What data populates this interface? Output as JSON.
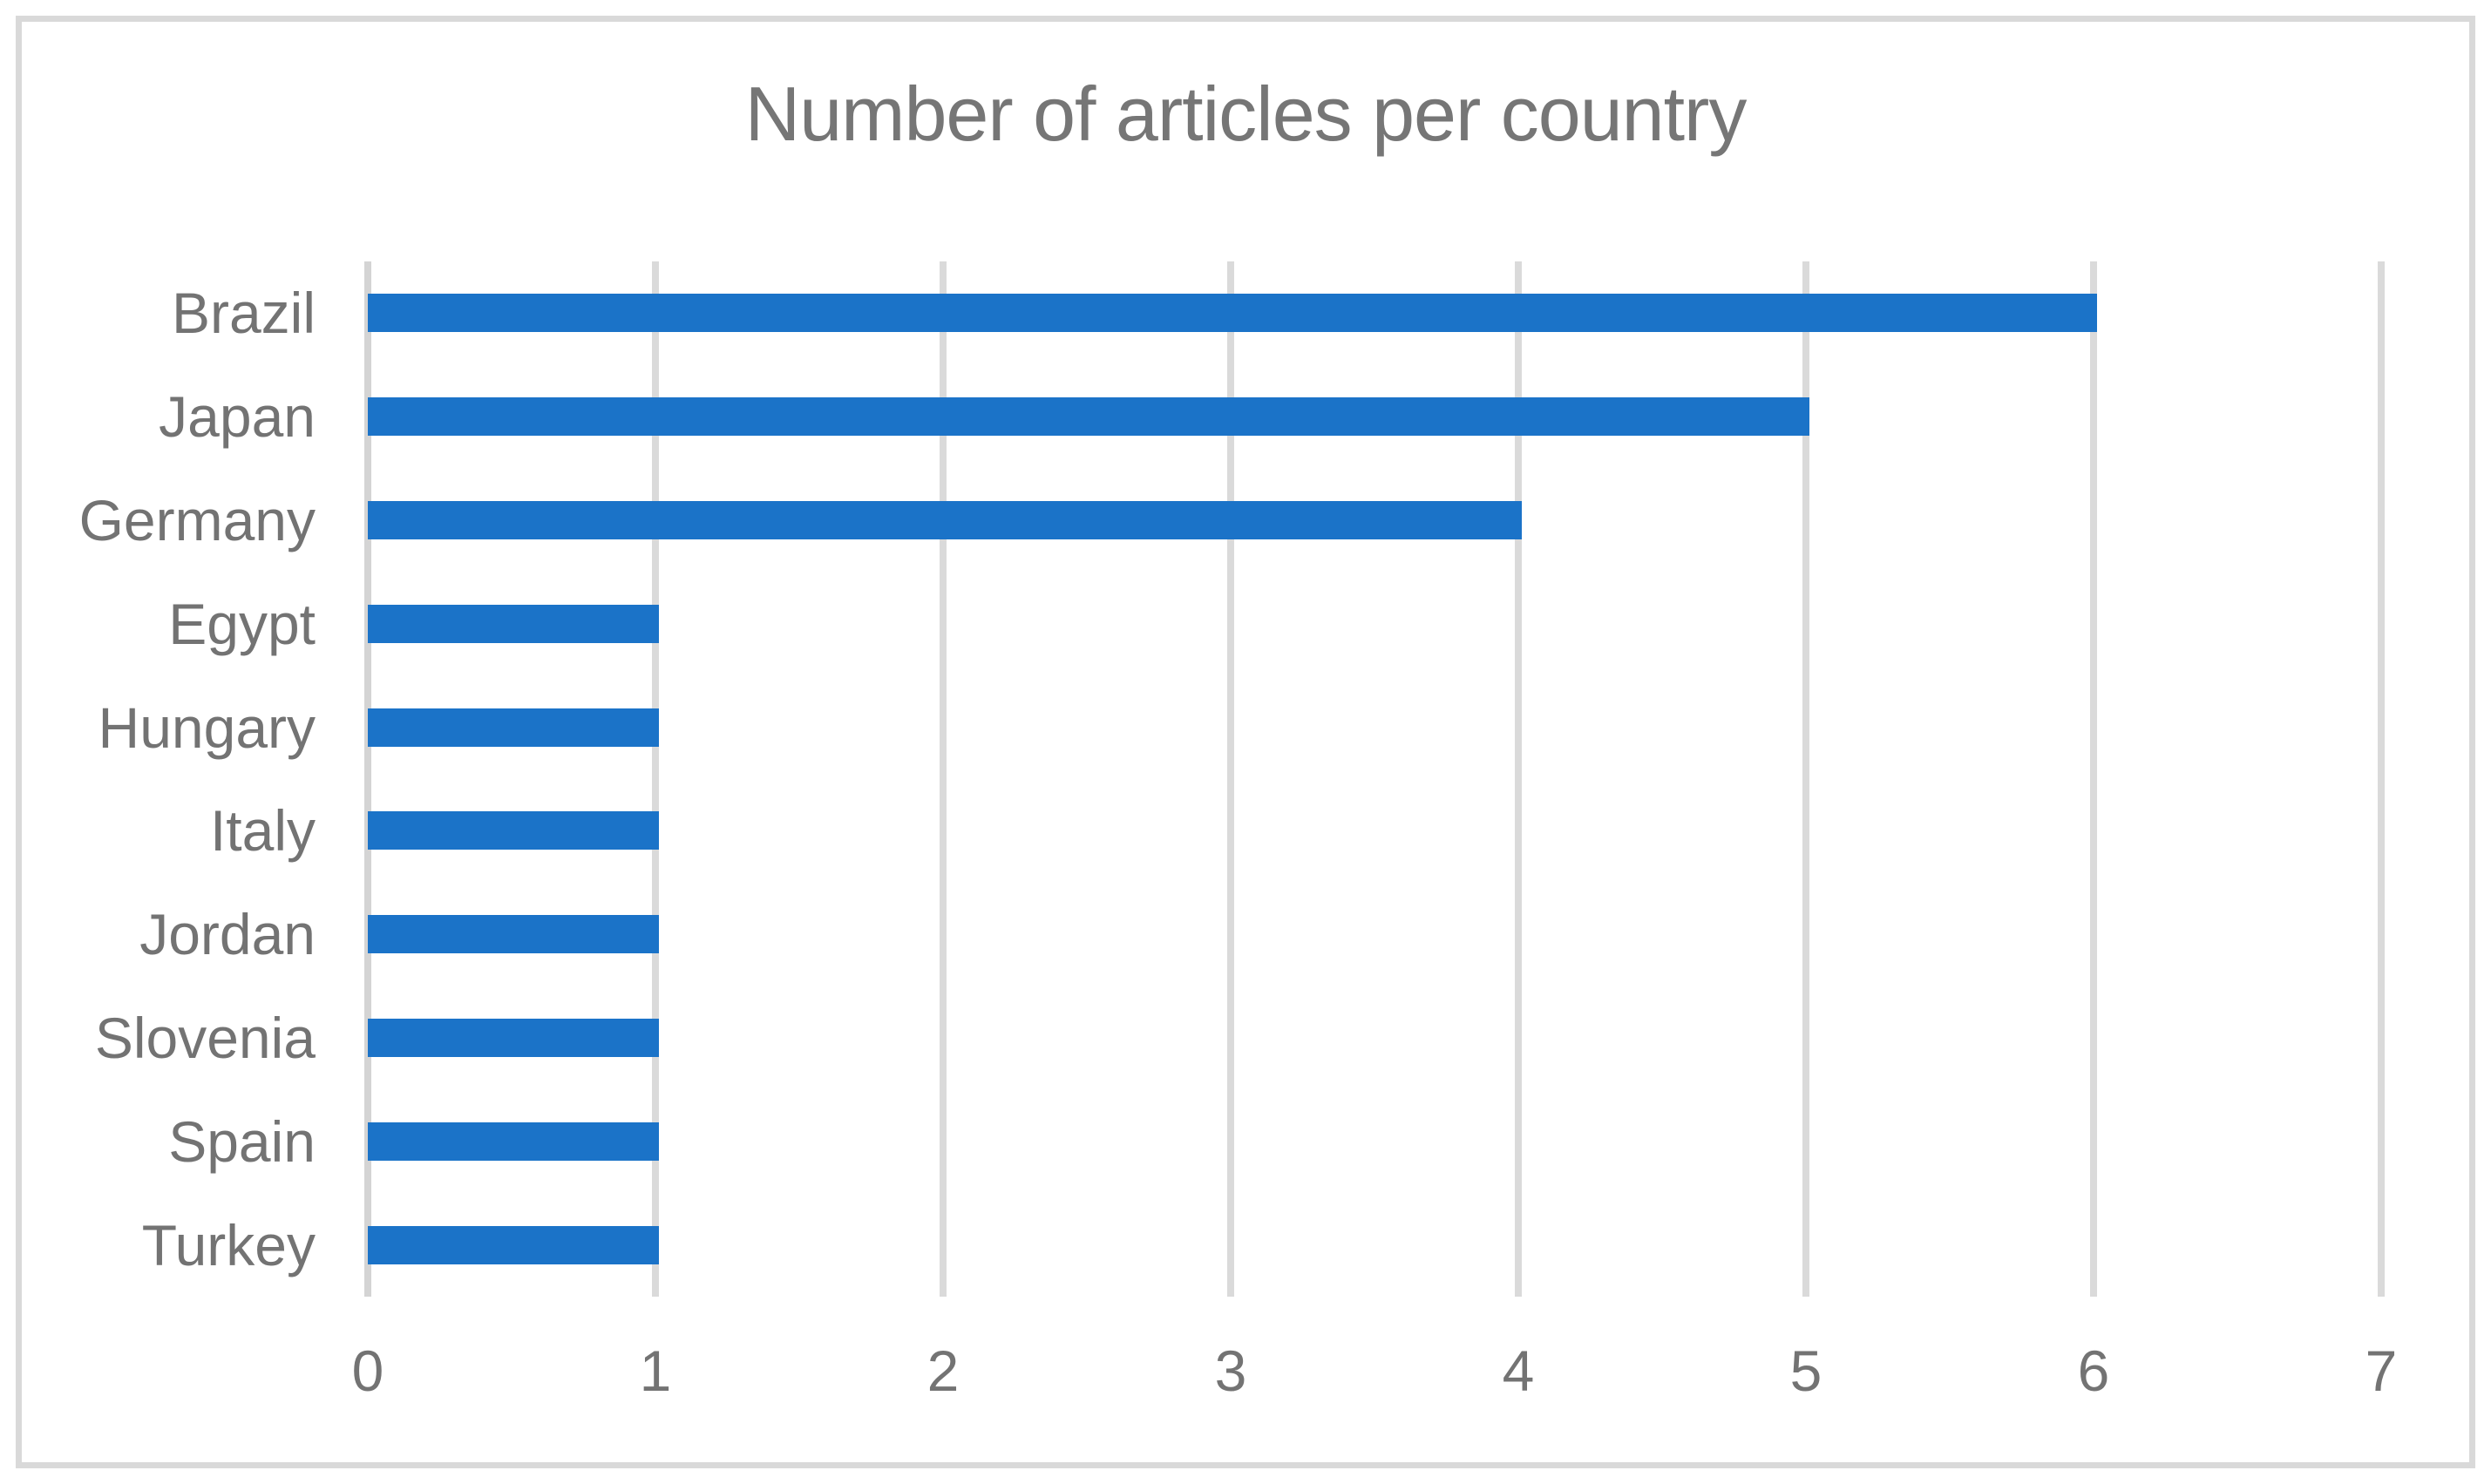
{
  "figure": {
    "background_color": "#ffffff",
    "border_color": "#d9d9d9"
  },
  "chart_data": {
    "type": "bar",
    "orientation": "horizontal",
    "title": "Number of articles per country",
    "categories": [
      "Brazil",
      "Japan",
      "Germany",
      "Egypt",
      "Hungary",
      "Italy",
      "Jordan",
      "Slovenia",
      "Spain",
      "Turkey"
    ],
    "values": [
      6,
      5,
      4,
      1,
      1,
      1,
      1,
      1,
      1,
      1
    ],
    "xlabel": "",
    "ylabel": "",
    "xlim": [
      0,
      7
    ],
    "xticks": [
      0,
      1,
      2,
      3,
      4,
      5,
      6,
      7
    ],
    "grid": "vertical-gridlines-on",
    "legend": "none",
    "bar_color": "#1b73c8",
    "gridline_color": "#dadada",
    "axis_line_color": "#d4d4d4",
    "title_color": "#767676",
    "label_color": "#737373"
  }
}
